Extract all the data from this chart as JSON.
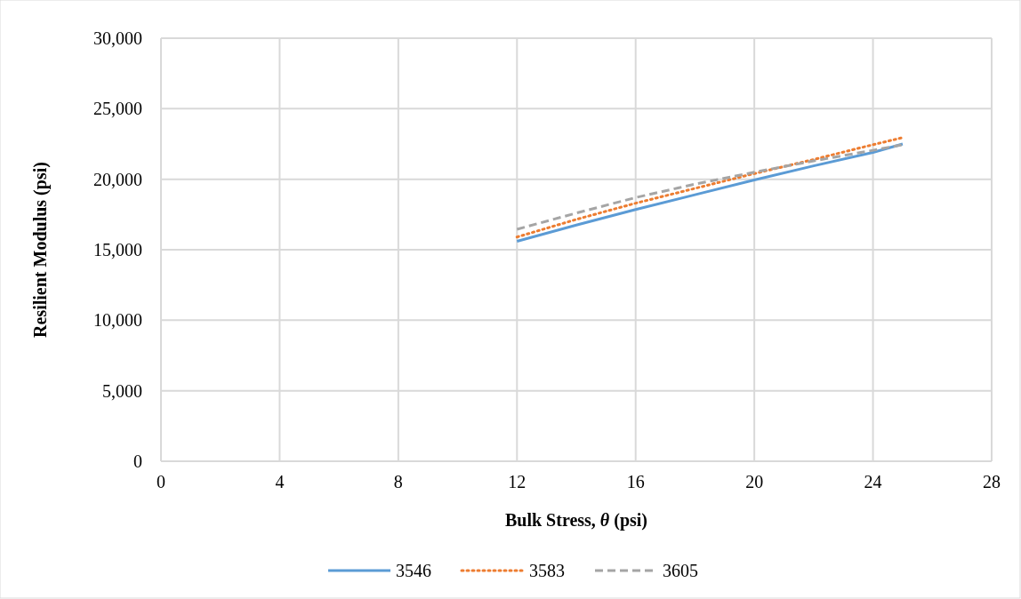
{
  "chart_data": {
    "type": "line",
    "xlabel": "Bulk Stress, θ (psi)",
    "ylabel": "Resilient Modulus (psi)",
    "x": [
      12,
      14,
      16,
      18,
      20,
      22,
      24,
      25
    ],
    "series": [
      {
        "name": "3546",
        "color": "#5b9bd5",
        "line_style": "solid",
        "values": [
          15600,
          16750,
          17850,
          18900,
          19950,
          20950,
          21900,
          22500
        ]
      },
      {
        "name": "3583",
        "color": "#ed7d31",
        "line_style": "dotted",
        "values": [
          15900,
          17150,
          18300,
          19350,
          20400,
          21400,
          22450,
          22950
        ]
      },
      {
        "name": "3605",
        "color": "#a5a5a5",
        "line_style": "dashed",
        "values": [
          16450,
          17600,
          18700,
          19650,
          20500,
          21300,
          22050,
          22450
        ]
      }
    ],
    "xlim": [
      0,
      28
    ],
    "xticks": [
      0,
      4,
      8,
      12,
      16,
      20,
      24,
      28
    ],
    "ylim": [
      0,
      30000
    ],
    "yticks": [
      {
        "value": 0,
        "label": "0"
      },
      {
        "value": 5000,
        "label": "5,000"
      },
      {
        "value": 10000,
        "label": "10,000"
      },
      {
        "value": 15000,
        "label": "15,000"
      },
      {
        "value": 20000,
        "label": "20,000"
      },
      {
        "value": 25000,
        "label": "25,000"
      },
      {
        "value": 30000,
        "label": "30,000"
      }
    ],
    "grid": true,
    "legend": "bottom"
  }
}
